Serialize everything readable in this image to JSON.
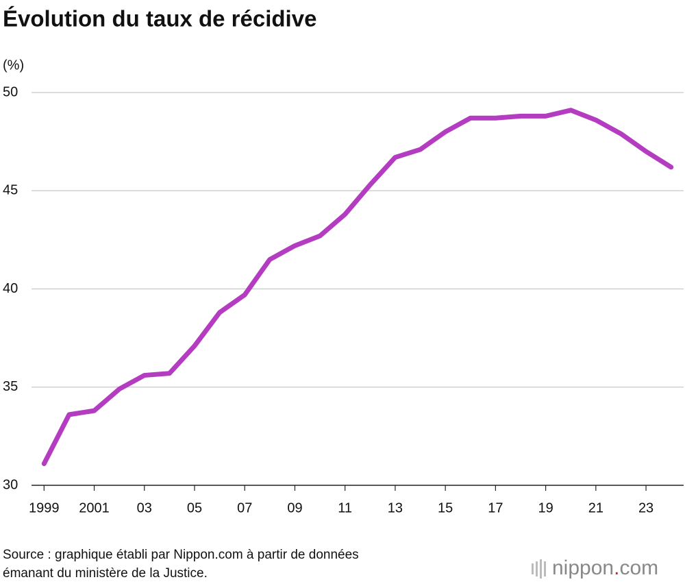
{
  "chart_data": {
    "type": "line",
    "title": "Évolution du taux de récidive",
    "y_label": "(%)",
    "x": [
      1999,
      2000,
      2001,
      2002,
      2003,
      2004,
      2005,
      2006,
      2007,
      2008,
      2009,
      2010,
      2011,
      2012,
      2013,
      2014,
      2015,
      2016,
      2017,
      2018,
      2019,
      2020,
      2021,
      2022,
      2023,
      2024
    ],
    "series": [
      {
        "color": "#b43cc0",
        "values": [
          31.1,
          33.6,
          33.8,
          34.9,
          35.6,
          35.7,
          37.1,
          38.8,
          39.7,
          41.5,
          42.2,
          42.7,
          43.8,
          45.3,
          46.7,
          47.1,
          48.0,
          48.7,
          48.7,
          48.8,
          48.8,
          49.1,
          48.6,
          47.9,
          47.0,
          46.2
        ]
      }
    ],
    "xlim": [
      1998.5,
      2024.5
    ],
    "xticks": [
      1999,
      2001,
      {
        "value": 2003,
        "label": "03"
      },
      {
        "value": 2005,
        "label": "05"
      },
      {
        "value": 2007,
        "label": "07"
      },
      {
        "value": 2009,
        "label": "09"
      },
      {
        "value": 2011,
        "label": "11"
      },
      {
        "value": 2013,
        "label": "13"
      },
      {
        "value": 2015,
        "label": "15"
      },
      {
        "value": 2017,
        "label": "17"
      },
      {
        "value": 2019,
        "label": "19"
      },
      {
        "value": 2021,
        "label": "21"
      },
      {
        "value": 2023,
        "label": "23"
      }
    ],
    "ylim": [
      30,
      50
    ],
    "yticks": [
      30,
      35,
      40,
      45,
      50
    ],
    "grid": true,
    "source": [
      "Source : graphique établi par Nippon.com à partir de données",
      "émanant du ministère de la Justice."
    ]
  },
  "logo": {
    "name": "nippon",
    "dot": ".",
    "tld": "com"
  }
}
